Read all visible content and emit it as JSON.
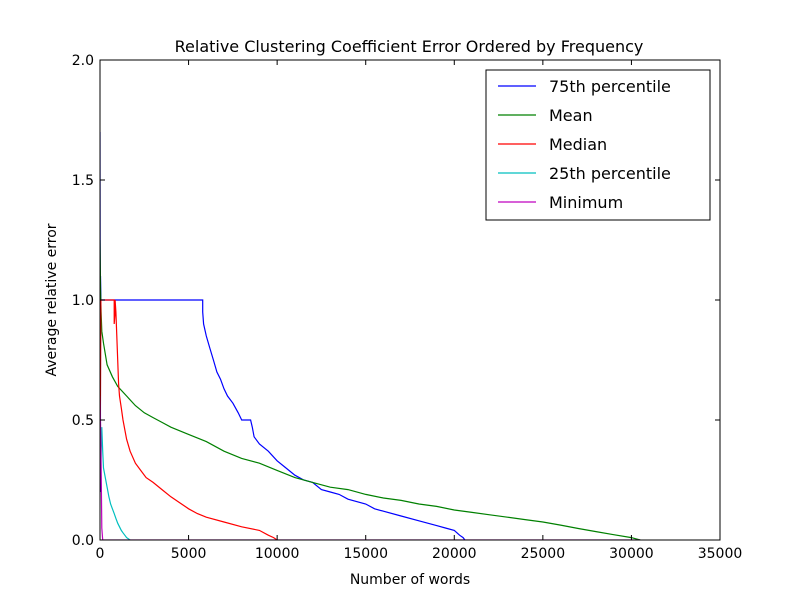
{
  "chart_data": {
    "type": "line",
    "title": "Relative Clustering Coefficient Error Ordered by Frequency",
    "xlabel": "Number of words",
    "ylabel": "Average relative error",
    "xlim": [
      0,
      35000
    ],
    "ylim": [
      0,
      2.0
    ],
    "x_ticks": [
      0,
      5000,
      10000,
      15000,
      20000,
      25000,
      30000,
      35000
    ],
    "x_tick_labels": [
      "0",
      "5000",
      "10000",
      "15000",
      "20000",
      "25000",
      "30000",
      "35000"
    ],
    "y_ticks": [
      0,
      0.5,
      1.0,
      1.5,
      2.0
    ],
    "y_tick_labels": [
      "0.0",
      "0.5",
      "1.0",
      "1.5",
      "2.0"
    ],
    "grid": false,
    "legend_position": "top-right",
    "series": [
      {
        "name": "75th percentile",
        "color": "#0000ff",
        "x": [
          0,
          20,
          30,
          50,
          100,
          5800,
          5800,
          5850,
          6000,
          6200,
          6400,
          6600,
          6800,
          7000,
          7200,
          7500,
          7800,
          8000,
          8500,
          8600,
          8700,
          9000,
          9500,
          10000,
          10500,
          11000,
          11500,
          12000,
          12500,
          13000,
          13500,
          14000,
          15000,
          15500,
          16000,
          17000,
          18000,
          19000,
          19500,
          20000,
          20300,
          20500,
          20600
        ],
        "y": [
          1.7,
          0.2,
          1.1,
          1.0,
          1.0,
          1.0,
          0.95,
          0.9,
          0.85,
          0.8,
          0.75,
          0.7,
          0.67,
          0.63,
          0.6,
          0.57,
          0.53,
          0.5,
          0.5,
          0.47,
          0.43,
          0.4,
          0.37,
          0.33,
          0.3,
          0.27,
          0.25,
          0.24,
          0.21,
          0.2,
          0.19,
          0.17,
          0.15,
          0.13,
          0.12,
          0.1,
          0.08,
          0.06,
          0.05,
          0.04,
          0.02,
          0.01,
          0.0
        ]
      },
      {
        "name": "Mean",
        "color": "#008000",
        "x": [
          0,
          30,
          60,
          100,
          200,
          400,
          700,
          1000,
          1500,
          2000,
          2500,
          3000,
          3500,
          4000,
          5000,
          6000,
          7000,
          8000,
          9000,
          10000,
          11000,
          12000,
          13000,
          14000,
          15000,
          16000,
          17000,
          18000,
          19000,
          20000,
          21000,
          22000,
          23000,
          24000,
          25000,
          26000,
          27000,
          28000,
          29000,
          30000,
          30500
        ],
        "y": [
          1.25,
          1.05,
          0.95,
          0.87,
          0.82,
          0.73,
          0.68,
          0.64,
          0.6,
          0.56,
          0.53,
          0.51,
          0.49,
          0.47,
          0.44,
          0.41,
          0.37,
          0.34,
          0.32,
          0.29,
          0.26,
          0.24,
          0.22,
          0.21,
          0.19,
          0.175,
          0.165,
          0.15,
          0.14,
          0.125,
          0.115,
          0.105,
          0.095,
          0.085,
          0.075,
          0.062,
          0.048,
          0.035,
          0.022,
          0.01,
          0.0
        ]
      },
      {
        "name": "Median",
        "color": "#ff0000",
        "x": [
          0,
          50,
          100,
          800,
          800,
          850,
          850,
          900,
          950,
          1000,
          1050,
          1100,
          1200,
          1300,
          1400,
          1500,
          1700,
          2000,
          2300,
          2600,
          3000,
          3500,
          4000,
          4500,
          5000,
          5500,
          6000,
          7000,
          8000,
          9000,
          9500,
          9800,
          10000
        ],
        "y": [
          0.2,
          1.0,
          1.0,
          1.0,
          0.9,
          0.95,
          1.0,
          0.95,
          0.85,
          0.75,
          0.65,
          0.6,
          0.55,
          0.5,
          0.46,
          0.42,
          0.37,
          0.32,
          0.29,
          0.26,
          0.24,
          0.21,
          0.18,
          0.155,
          0.13,
          0.11,
          0.095,
          0.075,
          0.055,
          0.04,
          0.02,
          0.01,
          0.0
        ]
      },
      {
        "name": "25th percentile",
        "color": "#00bfbf",
        "x": [
          0,
          50,
          100,
          150,
          200,
          300,
          400,
          500,
          600,
          700,
          800,
          900,
          1000,
          1100,
          1200,
          1300,
          1400,
          1500,
          1600,
          1700
        ],
        "y": [
          0.45,
          0.33,
          0.47,
          0.37,
          0.3,
          0.26,
          0.22,
          0.18,
          0.15,
          0.13,
          0.11,
          0.09,
          0.07,
          0.055,
          0.04,
          0.03,
          0.02,
          0.01,
          0.005,
          0.0
        ]
      },
      {
        "name": "Minimum",
        "color": "#bf00bf",
        "x": [
          0,
          50,
          100,
          150,
          30500
        ],
        "y": [
          0.6,
          0.4,
          0.05,
          0.0,
          0.0
        ]
      }
    ]
  }
}
